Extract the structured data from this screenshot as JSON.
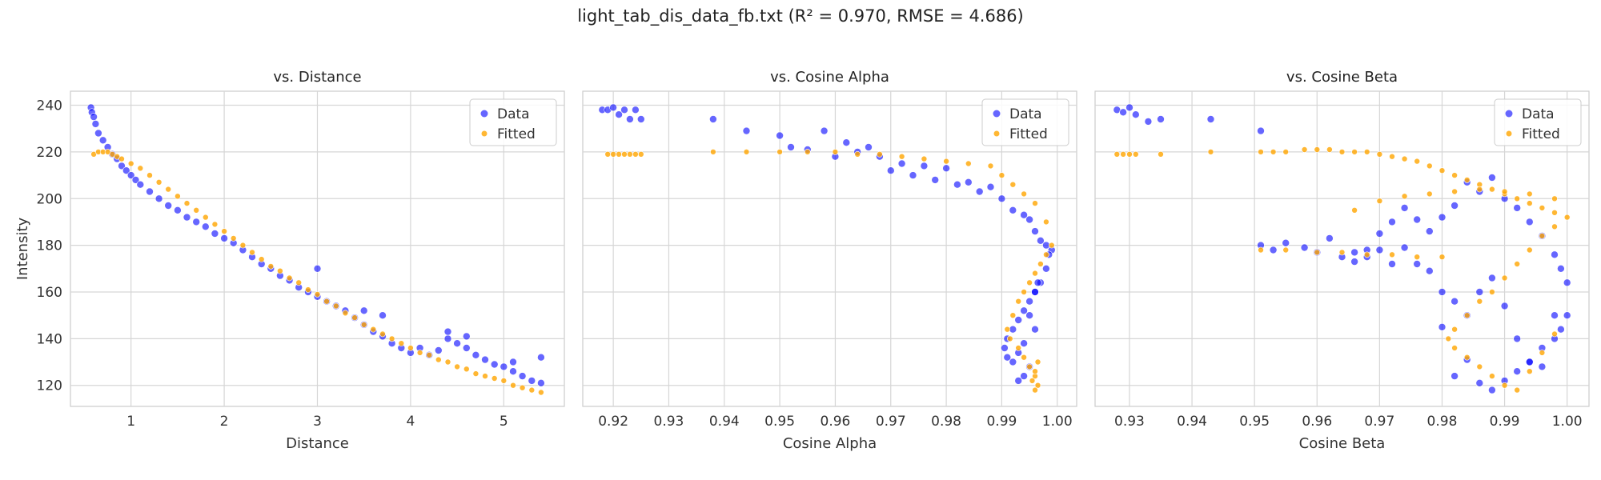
{
  "suptitle": "light_tab_dis_data_fb.txt (R² = 0.970, RMSE = 4.686)",
  "colors": {
    "data": "#0000ff",
    "fitted": "#ffa500"
  },
  "chart_data": [
    {
      "type": "scatter",
      "title": "vs. Distance",
      "xlabel": "Distance",
      "ylabel": "Intensity",
      "xlim": [
        0.35,
        5.65
      ],
      "ylim": [
        111,
        246
      ],
      "xticks": [
        1,
        2,
        3,
        4,
        5
      ],
      "xtick_labels": [
        "1",
        "2",
        "3",
        "4",
        "5"
      ],
      "yticks": [
        120,
        140,
        160,
        180,
        200,
        220,
        240
      ],
      "ytick_labels": [
        "120",
        "140",
        "160",
        "180",
        "200",
        "220",
        "240"
      ],
      "grid": true,
      "legend": "top-right",
      "series": [
        {
          "name": "Data",
          "color": "#0000ff",
          "x": [
            0.57,
            0.58,
            0.6,
            0.62,
            0.65,
            0.7,
            0.75,
            0.8,
            0.85,
            0.9,
            0.95,
            1.0,
            1.05,
            1.1,
            1.2,
            1.3,
            1.4,
            1.5,
            1.6,
            1.7,
            1.8,
            1.9,
            2.0,
            2.1,
            2.2,
            2.3,
            2.4,
            2.5,
            2.6,
            2.7,
            2.8,
            2.9,
            3.0,
            3.1,
            3.2,
            3.3,
            3.4,
            3.5,
            3.6,
            3.7,
            3.8,
            3.9,
            4.0,
            4.1,
            4.2,
            4.3,
            4.4,
            4.5,
            4.6,
            4.7,
            4.8,
            4.9,
            5.0,
            5.1,
            5.2,
            5.3,
            5.4,
            3.0,
            3.5,
            3.7,
            4.4,
            4.6,
            5.1,
            5.4
          ],
          "y": [
            239,
            237,
            235,
            232,
            228,
            225,
            222,
            219,
            217,
            214,
            212,
            210,
            208,
            206,
            203,
            200,
            197,
            195,
            192,
            190,
            188,
            185,
            183,
            181,
            178,
            175,
            172,
            170,
            167,
            165,
            162,
            160,
            158,
            156,
            154,
            152,
            149,
            146,
            143,
            141,
            138,
            136,
            134,
            136,
            133,
            135,
            140,
            138,
            136,
            133,
            131,
            129,
            128,
            126,
            124,
            122,
            121,
            170,
            152,
            150,
            143,
            141,
            130,
            132
          ]
        },
        {
          "name": "Fitted",
          "color": "#ffa500",
          "x": [
            0.6,
            0.65,
            0.7,
            0.75,
            0.8,
            0.85,
            0.9,
            1.0,
            1.1,
            1.2,
            1.3,
            1.4,
            1.5,
            1.6,
            1.7,
            1.8,
            1.9,
            2.0,
            2.1,
            2.2,
            2.3,
            2.4,
            2.5,
            2.6,
            2.7,
            2.8,
            2.9,
            3.0,
            3.1,
            3.2,
            3.3,
            3.4,
            3.5,
            3.6,
            3.7,
            3.8,
            3.9,
            4.0,
            4.1,
            4.2,
            4.3,
            4.4,
            4.5,
            4.6,
            4.7,
            4.8,
            4.9,
            5.0,
            5.1,
            5.2,
            5.3,
            5.4
          ],
          "y": [
            219,
            220,
            220,
            220,
            219,
            218,
            217,
            215,
            213,
            210,
            207,
            204,
            201,
            198,
            195,
            192,
            189,
            186,
            183,
            180,
            177,
            174,
            171,
            169,
            166,
            164,
            161,
            159,
            156,
            154,
            151,
            149,
            146,
            144,
            142,
            140,
            138,
            136,
            134,
            133,
            131,
            130,
            128,
            127,
            125,
            124,
            123,
            122,
            120,
            119,
            118,
            117
          ]
        }
      ]
    },
    {
      "type": "scatter",
      "title": "vs. Cosine Alpha",
      "xlabel": "Cosine Alpha",
      "ylabel": "",
      "xlim": [
        0.9145,
        1.0035
      ],
      "ylim": [
        111,
        246
      ],
      "xticks": [
        0.92,
        0.93,
        0.94,
        0.95,
        0.96,
        0.97,
        0.98,
        0.99,
        1.0
      ],
      "xtick_labels": [
        "0.92",
        "0.93",
        "0.94",
        "0.95",
        "0.96",
        "0.97",
        "0.98",
        "0.99",
        "1.00"
      ],
      "yticks": [
        120,
        140,
        160,
        180,
        200,
        220,
        240
      ],
      "grid": true,
      "legend": "top-right",
      "series": [
        {
          "name": "Data",
          "color": "#0000ff",
          "x": [
            0.918,
            0.919,
            0.92,
            0.921,
            0.922,
            0.923,
            0.924,
            0.925,
            0.938,
            0.944,
            0.95,
            0.952,
            0.955,
            0.958,
            0.96,
            0.962,
            0.964,
            0.966,
            0.968,
            0.97,
            0.972,
            0.974,
            0.976,
            0.978,
            0.98,
            0.982,
            0.984,
            0.986,
            0.988,
            0.99,
            0.992,
            0.994,
            0.995,
            0.996,
            0.997,
            0.998,
            0.999,
            0.9985,
            0.998,
            0.997,
            0.996,
            0.995,
            0.994,
            0.993,
            0.992,
            0.991,
            0.9905,
            0.991,
            0.992,
            0.993,
            0.994,
            0.995,
            0.996,
            0.9965,
            0.996,
            0.995,
            0.994,
            0.993
          ],
          "y": [
            238,
            238,
            239,
            236,
            238,
            234,
            238,
            234,
            234,
            229,
            227,
            222,
            221,
            229,
            218,
            224,
            220,
            222,
            218,
            212,
            215,
            210,
            214,
            208,
            213,
            206,
            207,
            203,
            205,
            200,
            195,
            193,
            191,
            186,
            182,
            180,
            178,
            176,
            170,
            164,
            160,
            156,
            152,
            148,
            144,
            140,
            136,
            132,
            130,
            134,
            138,
            150,
            160,
            164,
            144,
            128,
            124,
            122
          ]
        },
        {
          "name": "Fitted",
          "color": "#ffa500",
          "x": [
            0.919,
            0.92,
            0.921,
            0.922,
            0.923,
            0.924,
            0.925,
            0.938,
            0.944,
            0.95,
            0.955,
            0.96,
            0.964,
            0.968,
            0.972,
            0.976,
            0.98,
            0.984,
            0.988,
            0.99,
            0.992,
            0.994,
            0.996,
            0.998,
            0.999,
            0.998,
            0.997,
            0.996,
            0.995,
            0.994,
            0.993,
            0.992,
            0.991,
            0.9915,
            0.993,
            0.994,
            0.995,
            0.996,
            0.9965,
            0.996,
            0.9955,
            0.996,
            0.9965
          ],
          "y": [
            219,
            219,
            219,
            219,
            219,
            219,
            219,
            220,
            220,
            220,
            220,
            220,
            219,
            219,
            218,
            217,
            216,
            215,
            214,
            210,
            206,
            202,
            198,
            190,
            180,
            176,
            172,
            168,
            164,
            160,
            156,
            150,
            144,
            140,
            136,
            132,
            128,
            124,
            120,
            118,
            122,
            126,
            130
          ]
        }
      ]
    },
    {
      "type": "scatter",
      "title": "vs. Cosine Beta",
      "xlabel": "Cosine Beta",
      "ylabel": "",
      "xlim": [
        0.9245,
        1.0035
      ],
      "ylim": [
        111,
        246
      ],
      "xticks": [
        0.93,
        0.94,
        0.95,
        0.96,
        0.97,
        0.98,
        0.99,
        1.0
      ],
      "xtick_labels": [
        "0.93",
        "0.94",
        "0.95",
        "0.96",
        "0.97",
        "0.98",
        "0.99",
        "1.00"
      ],
      "yticks": [
        120,
        140,
        160,
        180,
        200,
        220,
        240
      ],
      "grid": true,
      "legend": "top-right",
      "series": [
        {
          "name": "Data",
          "color": "#0000ff",
          "x": [
            0.928,
            0.929,
            0.93,
            0.931,
            0.933,
            0.935,
            0.943,
            0.951,
            0.951,
            0.953,
            0.955,
            0.958,
            0.96,
            0.962,
            0.964,
            0.966,
            0.968,
            0.97,
            0.972,
            0.974,
            0.976,
            0.978,
            0.98,
            0.982,
            0.984,
            0.986,
            0.988,
            0.99,
            0.992,
            0.994,
            0.996,
            0.998,
            0.999,
            1.0,
            1.0,
            0.999,
            0.998,
            0.996,
            0.994,
            0.992,
            0.99,
            0.988,
            0.986,
            0.984,
            0.982,
            0.98,
            0.966,
            0.968,
            0.97,
            0.972,
            0.974,
            0.976,
            0.978,
            0.98,
            0.982,
            0.984,
            0.986,
            0.988,
            0.99,
            0.992,
            0.994,
            0.996,
            0.998
          ],
          "y": [
            238,
            237,
            239,
            236,
            233,
            234,
            234,
            229,
            180,
            178,
            181,
            179,
            177,
            183,
            175,
            173,
            178,
            185,
            190,
            196,
            191,
            186,
            192,
            197,
            207,
            203,
            209,
            200,
            196,
            190,
            184,
            176,
            170,
            164,
            150,
            144,
            140,
            136,
            130,
            126,
            122,
            118,
            121,
            131,
            124,
            145,
            177,
            175,
            178,
            172,
            179,
            172,
            169,
            160,
            156,
            150,
            160,
            166,
            154,
            140,
            130,
            128,
            150
          ]
        },
        {
          "name": "Fitted",
          "color": "#ffa500",
          "x": [
            0.928,
            0.929,
            0.93,
            0.931,
            0.935,
            0.943,
            0.951,
            0.953,
            0.955,
            0.958,
            0.96,
            0.962,
            0.964,
            0.966,
            0.968,
            0.97,
            0.972,
            0.974,
            0.976,
            0.978,
            0.98,
            0.982,
            0.984,
            0.986,
            0.988,
            0.99,
            0.992,
            0.994,
            0.996,
            0.998,
            1.0,
            0.998,
            0.996,
            0.994,
            0.992,
            0.99,
            0.988,
            0.986,
            0.984,
            0.982,
            0.981,
            0.982,
            0.984,
            0.986,
            0.988,
            0.99,
            0.992,
            0.994,
            0.996,
            0.998,
            0.951,
            0.955,
            0.96,
            0.964,
            0.968,
            0.972,
            0.976,
            0.98,
            0.966,
            0.97,
            0.974,
            0.978,
            0.982,
            0.986,
            0.99,
            0.994,
            0.998
          ],
          "y": [
            219,
            219,
            219,
            219,
            219,
            220,
            220,
            220,
            220,
            221,
            221,
            221,
            220,
            220,
            220,
            219,
            218,
            217,
            216,
            214,
            212,
            210,
            208,
            206,
            204,
            202,
            200,
            198,
            196,
            194,
            192,
            188,
            184,
            178,
            172,
            166,
            160,
            156,
            150,
            144,
            140,
            136,
            132,
            128,
            124,
            120,
            118,
            126,
            134,
            142,
            178,
            178,
            177,
            177,
            176,
            176,
            175,
            175,
            195,
            199,
            201,
            202,
            203,
            204,
            203,
            202,
            200
          ]
        }
      ]
    }
  ],
  "legend": {
    "data_label": "Data",
    "fitted_label": "Fitted"
  }
}
